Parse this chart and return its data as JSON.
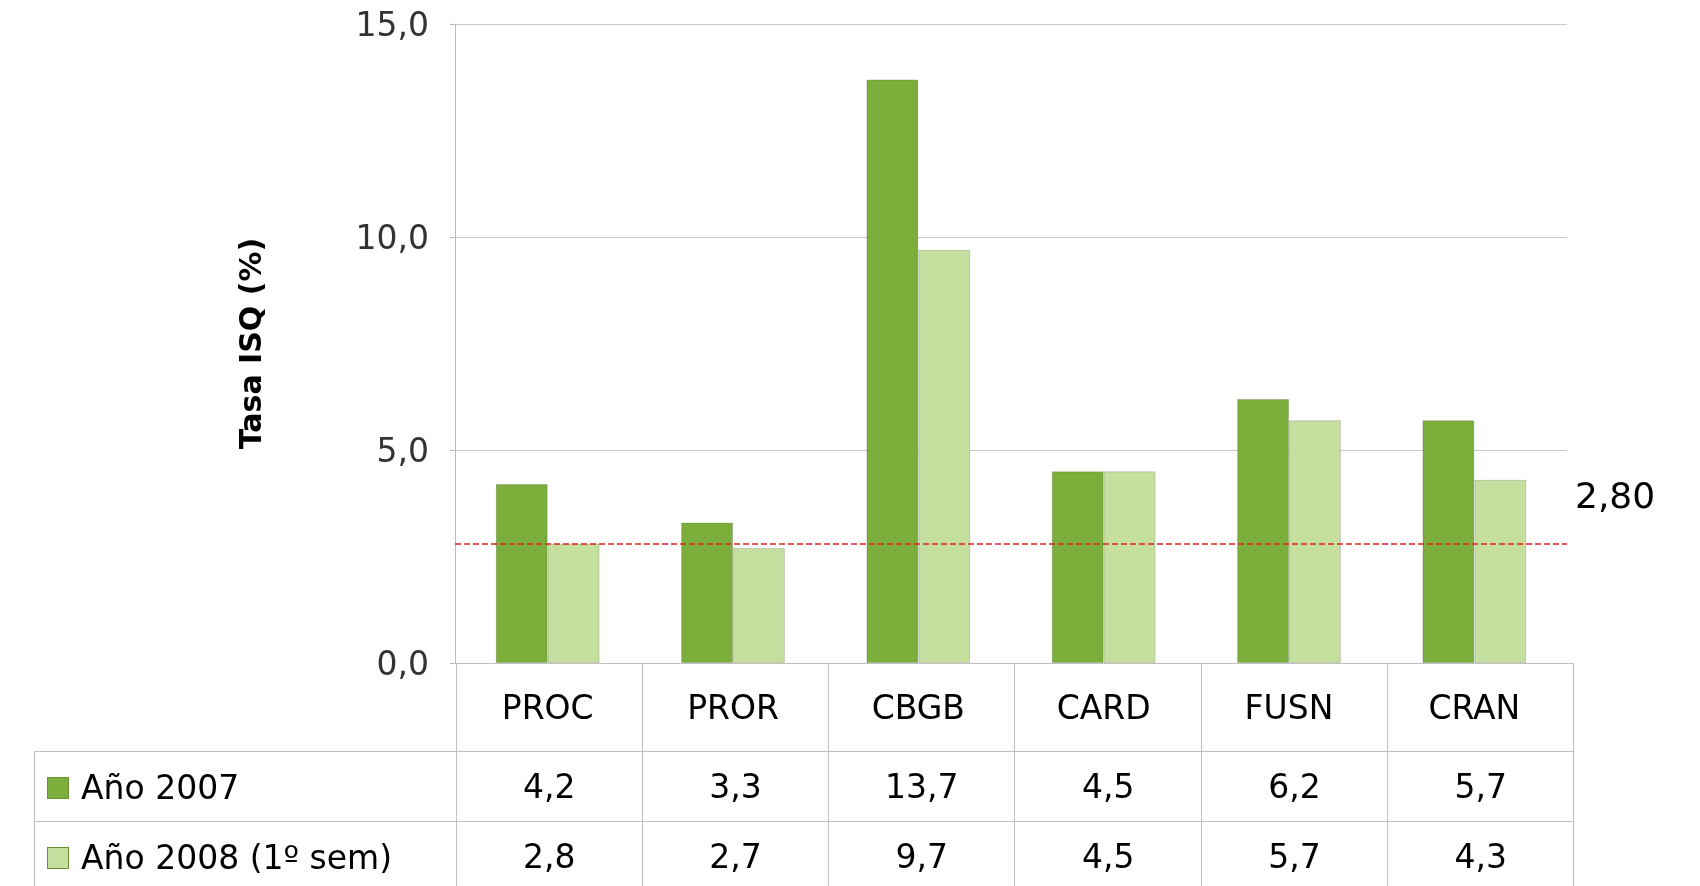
{
  "chart_data": {
    "type": "bar",
    "ylabel": "Tasa ISQ (%)",
    "categories": [
      "PROC",
      "PROR",
      "CBGB",
      "CARD",
      "FUSN",
      "CRAN"
    ],
    "series": [
      {
        "name": "Año 2007",
        "color": "#7cae3c",
        "values": [
          4.2,
          3.3,
          13.7,
          4.5,
          6.2,
          5.7
        ],
        "value_labels": [
          "4,2",
          "3,3",
          "13,7",
          "4,5",
          "6,2",
          "5,7"
        ]
      },
      {
        "name": "Año 2008 (1º sem)",
        "color": "#c5df9e",
        "values": [
          2.8,
          2.7,
          9.7,
          4.5,
          5.7,
          4.3
        ],
        "value_labels": [
          "2,8",
          "2,7",
          "9,7",
          "4,5",
          "5,7",
          "4,3"
        ]
      }
    ],
    "ylim": [
      0,
      15
    ],
    "yticks": [
      {
        "value": 0,
        "label": "0,0"
      },
      {
        "value": 5,
        "label": "5,0"
      },
      {
        "value": 10,
        "label": "10,0"
      },
      {
        "value": 15,
        "label": "15,0"
      }
    ],
    "grid": "y",
    "legend": "bottom left",
    "ref_lines": [
      {
        "axis": "y",
        "value": 2.8,
        "label": "2,80",
        "color": "#e0201b",
        "line_style": "dashed"
      }
    ]
  }
}
